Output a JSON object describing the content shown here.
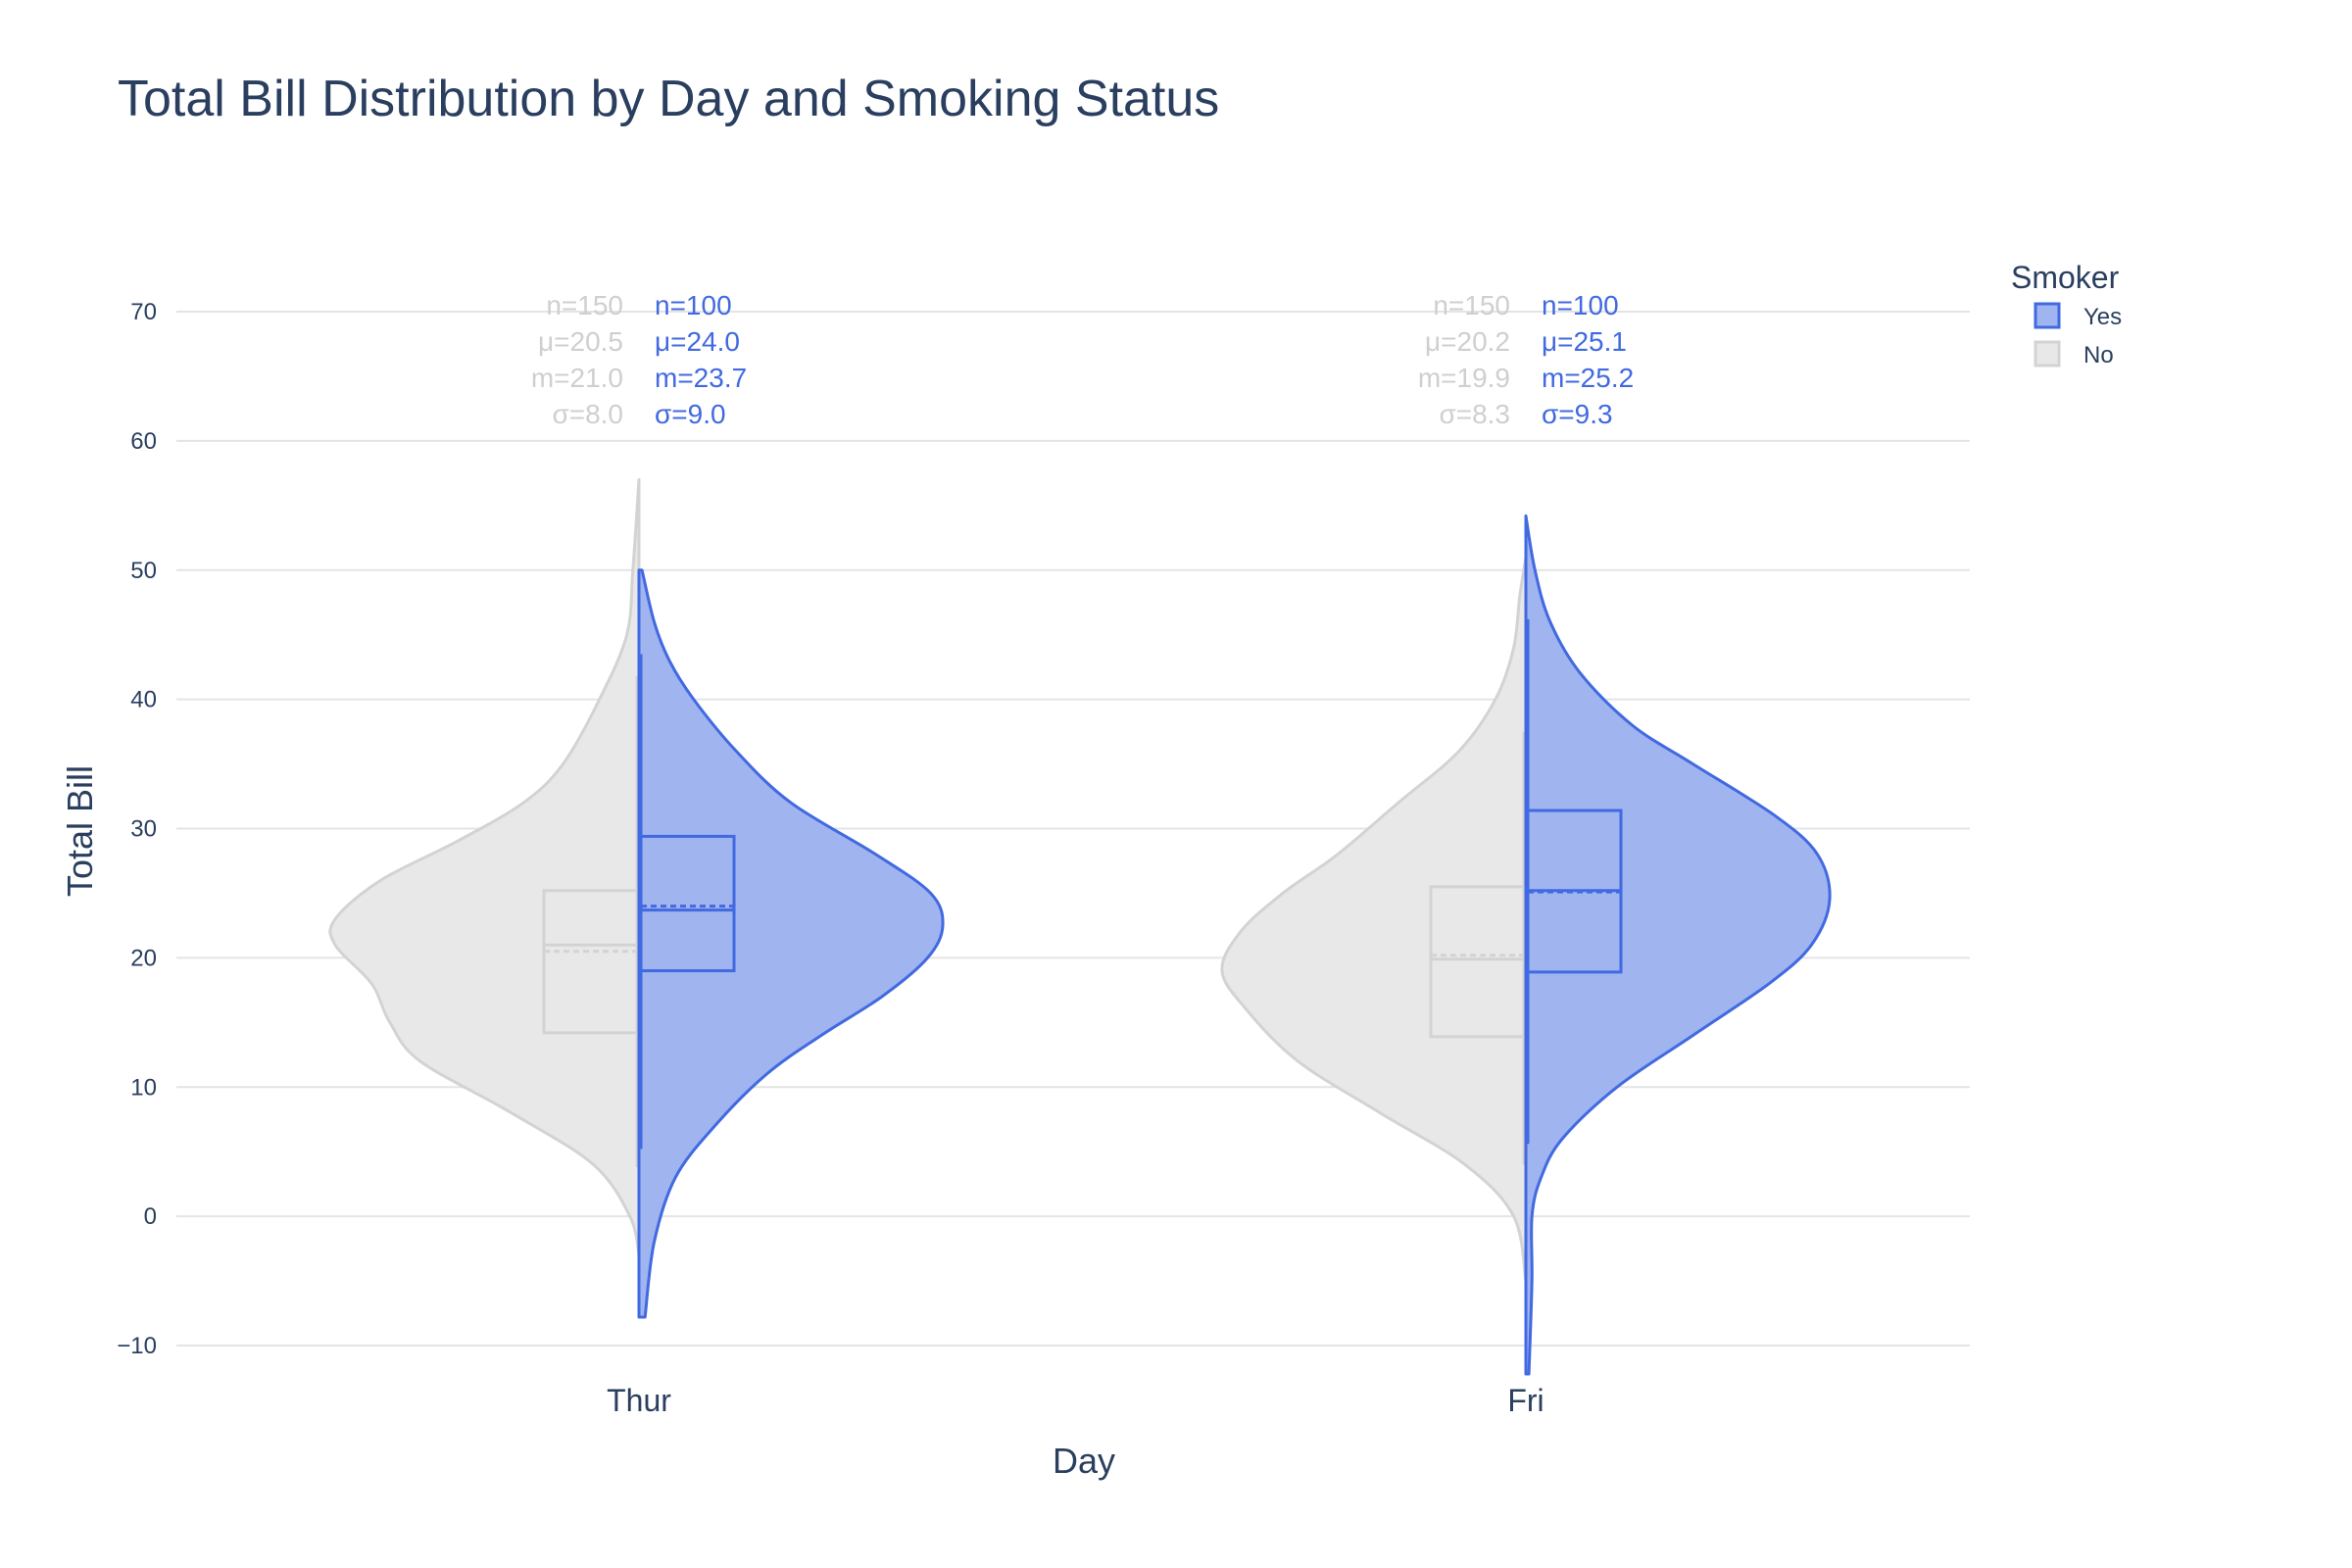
{
  "chart_data": {
    "type": "violin",
    "title": "Total Bill Distribution by Day and Smoking Status",
    "xlabel": "Day",
    "ylabel": "Total Bill",
    "ylim": [
      -12,
      72
    ],
    "yticks": [
      "−10",
      "0",
      "10",
      "20",
      "30",
      "40",
      "50",
      "60",
      "70"
    ],
    "ytick_values": [
      -10,
      0,
      10,
      20,
      30,
      40,
      50,
      60,
      70
    ],
    "categories": [
      "Thur",
      "Fri"
    ],
    "grid": true,
    "legend": {
      "title": "Smoker",
      "position": "top-right",
      "items": [
        {
          "label": "Yes",
          "fill": "#a0b4ef",
          "stroke": "#4169e1"
        },
        {
          "label": "No",
          "fill": "#e8e8e8",
          "stroke": "#d3d3d3"
        }
      ]
    },
    "series": [
      {
        "name": "Yes",
        "side": "positive",
        "fill": "#a0b4ef",
        "line": "#4169e1",
        "groups": [
          {
            "category": "Thur",
            "q1": 19.0,
            "median": 23.7,
            "q3": 29.4,
            "mean": 24.0,
            "whisker_low": 5.2,
            "whisker_high": 43.5,
            "density": [
              [
                -7.8,
                0.02
              ],
              [
                -2,
                0.05
              ],
              [
                3,
                0.12
              ],
              [
                7,
                0.25
              ],
              [
                11,
                0.42
              ],
              [
                14,
                0.6
              ],
              [
                17,
                0.8
              ],
              [
                20,
                0.95
              ],
              [
                22.5,
                1.0
              ],
              [
                25,
                0.96
              ],
              [
                28,
                0.78
              ],
              [
                32,
                0.5
              ],
              [
                36,
                0.32
              ],
              [
                40,
                0.18
              ],
              [
                43,
                0.1
              ],
              [
                46,
                0.05
              ],
              [
                50,
                0.01
              ]
            ],
            "stats": {
              "n": "n=100",
              "mean": "μ=24.0",
              "median": "m=23.7",
              "sd": "σ=9.0"
            }
          },
          {
            "category": "Fri",
            "q1": 18.9,
            "median": 25.2,
            "q3": 31.4,
            "mean": 25.1,
            "whisker_low": 5.6,
            "whisker_high": 46.2,
            "density": [
              [
                -12.2,
                0.01
              ],
              [
                -5,
                0.02
              ],
              [
                0,
                0.02
              ],
              [
                3,
                0.05
              ],
              [
                6,
                0.12
              ],
              [
                10,
                0.3
              ],
              [
                14,
                0.55
              ],
              [
                18,
                0.8
              ],
              [
                21,
                0.94
              ],
              [
                24.5,
                1.0
              ],
              [
                28,
                0.96
              ],
              [
                31,
                0.82
              ],
              [
                35,
                0.55
              ],
              [
                38,
                0.35
              ],
              [
                42,
                0.18
              ],
              [
                46,
                0.08
              ],
              [
                50,
                0.03
              ],
              [
                54.2,
                0.0
              ]
            ],
            "stats": {
              "n": "n=100",
              "mean": "μ=25.1",
              "median": "m=25.2",
              "sd": "σ=9.3"
            }
          }
        ]
      },
      {
        "name": "No",
        "side": "negative",
        "fill": "#e8e8e8",
        "line": "#d3d3d3",
        "groups": [
          {
            "category": "Thur",
            "q1": 14.2,
            "median": 21.0,
            "q3": 25.2,
            "mean": 20.5,
            "whisker_low": 3.8,
            "whisker_high": 41.8,
            "density": [
              [
                -3,
                0.0
              ],
              [
                0,
                0.03
              ],
              [
                4,
                0.15
              ],
              [
                8,
                0.42
              ],
              [
                12,
                0.72
              ],
              [
                15,
                0.82
              ],
              [
                18,
                0.88
              ],
              [
                21,
                1.0
              ],
              [
                23,
                1.0
              ],
              [
                26,
                0.85
              ],
              [
                29,
                0.6
              ],
              [
                32,
                0.38
              ],
              [
                35,
                0.25
              ],
              [
                40,
                0.13
              ],
              [
                45,
                0.04
              ],
              [
                50,
                0.02
              ],
              [
                57,
                0.0
              ]
            ],
            "stats": {
              "n": "n=150",
              "mean": "μ=20.5",
              "median": "m=21.0",
              "sd": "σ=8.0"
            }
          },
          {
            "category": "Fri",
            "q1": 13.9,
            "median": 19.9,
            "q3": 25.5,
            "mean": 20.2,
            "whisker_low": 4.0,
            "whisker_high": 37.5,
            "density": [
              [
                -5,
                0.0
              ],
              [
                0,
                0.04
              ],
              [
                4,
                0.2
              ],
              [
                8,
                0.48
              ],
              [
                12,
                0.75
              ],
              [
                16,
                0.92
              ],
              [
                19,
                1.0
              ],
              [
                22,
                0.94
              ],
              [
                25,
                0.8
              ],
              [
                28,
                0.62
              ],
              [
                32,
                0.42
              ],
              [
                36,
                0.22
              ],
              [
                40,
                0.1
              ],
              [
                44,
                0.04
              ],
              [
                48,
                0.02
              ],
              [
                51,
                0.0
              ]
            ],
            "stats": {
              "n": "n=150",
              "mean": "μ=20.2",
              "median": "m=19.9",
              "sd": "σ=8.3"
            }
          }
        ]
      }
    ]
  }
}
